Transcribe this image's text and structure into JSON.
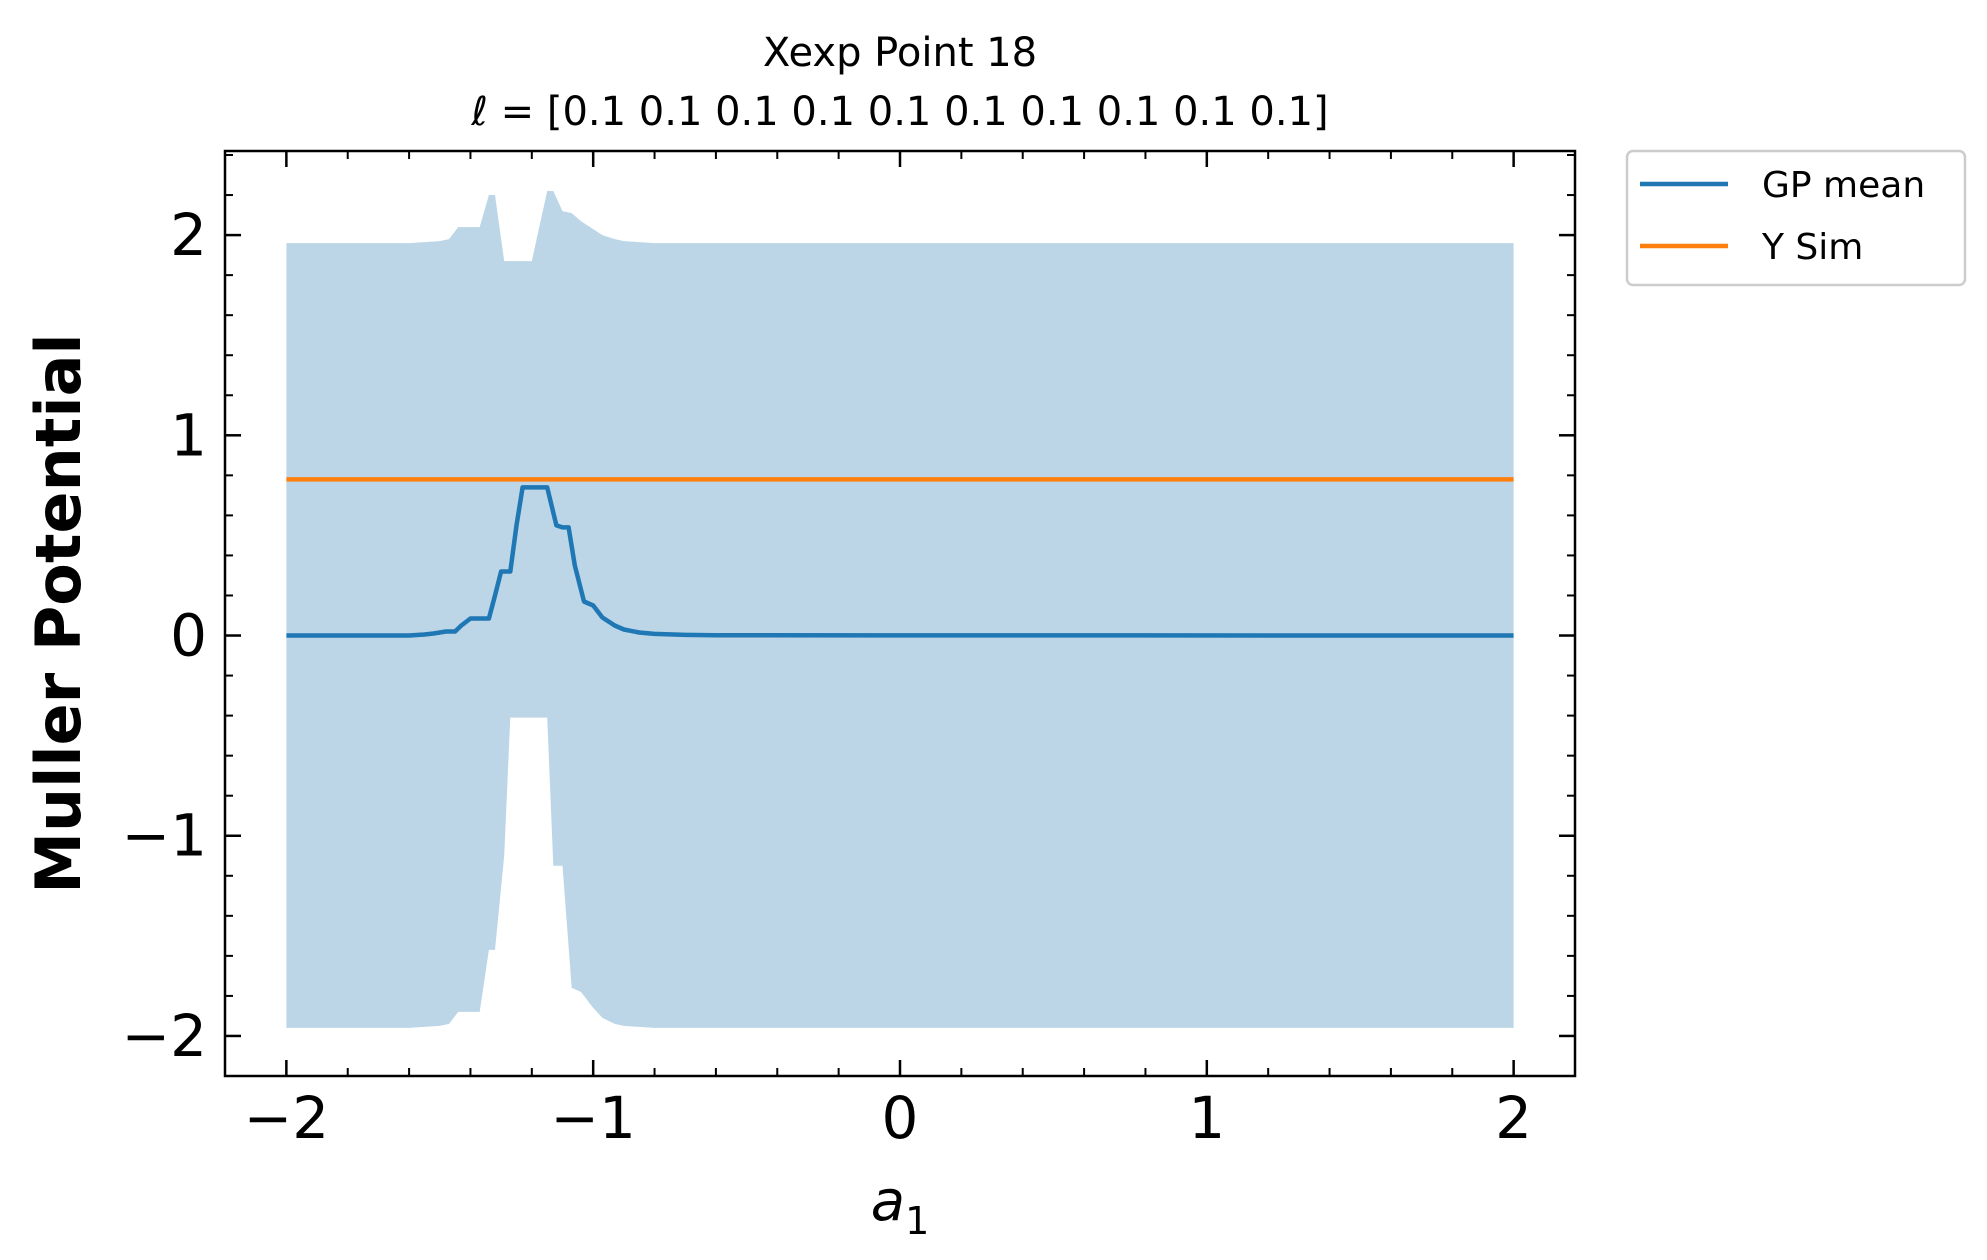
{
  "chart_data": {
    "type": "line",
    "title": "Xexp Point 18",
    "subtitle": "ℓ = [0.1 0.1 0.1 0.1 0.1 0.1 0.1 0.1 0.1 0.1]",
    "xlabel": "a",
    "xlabel_sub": "1",
    "ylabel": "Muller Potential",
    "xlim": [
      -2.2,
      2.2
    ],
    "ylim": [
      -2.2,
      2.42
    ],
    "xticks": [
      -2,
      -1,
      0,
      1,
      2
    ],
    "yticks": [
      -2,
      -1,
      0,
      1,
      2
    ],
    "xtick_labels": [
      "−2",
      "−1",
      "0",
      "1",
      "2"
    ],
    "ytick_labels": [
      "−2",
      "−1",
      "0",
      "1",
      "2"
    ],
    "x_minor_step": 0.2,
    "y_minor_step": 0.2,
    "grid": false,
    "legend_position": "outside top-right",
    "series": [
      {
        "name": "GP mean",
        "color": "#1f77b4",
        "x": [
          -2.0,
          -1.6,
          -1.55,
          -1.52,
          -1.48,
          -1.45,
          -1.43,
          -1.4,
          -1.37,
          -1.34,
          -1.32,
          -1.3,
          -1.27,
          -1.25,
          -1.23,
          -1.2,
          -1.18,
          -1.15,
          -1.12,
          -1.1,
          -1.08,
          -1.06,
          -1.03,
          -1.0,
          -0.97,
          -0.93,
          -0.9,
          -0.85,
          -0.8,
          -0.7,
          -0.6,
          2.0
        ],
        "y": [
          0.0,
          0.0,
          0.005,
          0.01,
          0.02,
          0.02,
          0.05,
          0.085,
          0.085,
          0.085,
          0.2,
          0.32,
          0.32,
          0.55,
          0.74,
          0.74,
          0.74,
          0.74,
          0.55,
          0.54,
          0.54,
          0.35,
          0.17,
          0.15,
          0.09,
          0.05,
          0.03,
          0.015,
          0.008,
          0.003,
          0.001,
          0.0
        ]
      },
      {
        "name": "Y Sim",
        "color": "#ff7f0e",
        "x": [
          -2.0,
          2.0
        ],
        "y": [
          0.78,
          0.78
        ]
      }
    ],
    "band": {
      "color": "#bcd6e8",
      "x": [
        -2.0,
        -1.6,
        -1.5,
        -1.47,
        -1.44,
        -1.4,
        -1.37,
        -1.34,
        -1.32,
        -1.29,
        -1.27,
        -1.24,
        -1.2,
        -1.15,
        -1.13,
        -1.1,
        -1.07,
        -1.04,
        -1.0,
        -0.97,
        -0.93,
        -0.9,
        -0.85,
        -0.8,
        -0.7,
        2.0
      ],
      "upper": [
        1.96,
        1.96,
        1.97,
        1.98,
        2.04,
        2.04,
        2.04,
        2.2,
        2.2,
        1.87,
        1.87,
        1.87,
        1.87,
        2.22,
        2.22,
        2.12,
        2.11,
        2.07,
        2.03,
        2.0,
        1.98,
        1.97,
        1.965,
        1.96,
        1.96,
        1.96
      ],
      "lower": [
        -1.96,
        -1.96,
        -1.95,
        -1.94,
        -1.88,
        -1.88,
        -1.88,
        -1.57,
        -1.57,
        -1.1,
        -0.41,
        -0.41,
        -0.41,
        -0.41,
        -1.15,
        -1.15,
        -1.76,
        -1.78,
        -1.86,
        -1.91,
        -1.94,
        -1.95,
        -1.955,
        -1.96,
        -1.96,
        -1.96
      ]
    }
  }
}
